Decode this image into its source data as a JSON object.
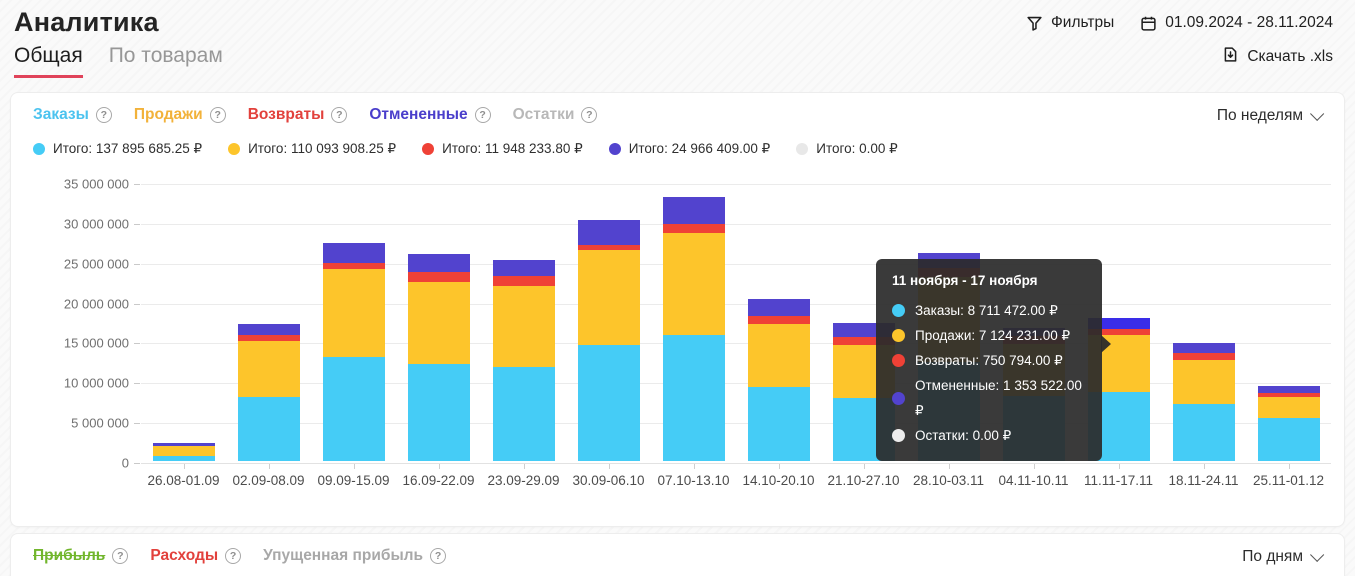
{
  "header": {
    "title": "Аналитика",
    "tabs": [
      {
        "label": "Общая",
        "active": true
      },
      {
        "label": "По товарам",
        "active": false
      }
    ],
    "filters_label": "Фильтры",
    "date_range": "01.09.2024 - 28.11.2024",
    "download_label": "Скачать .xls"
  },
  "main_panel": {
    "period_select": "По неделям",
    "series_toggles": [
      {
        "label": "Заказы",
        "color": "#4cc3ef",
        "strikethrough": false
      },
      {
        "label": "Продажи",
        "color": "#f2b23a",
        "strikethrough": false
      },
      {
        "label": "Возвраты",
        "color": "#e2413c",
        "strikethrough": false
      },
      {
        "label": "Отмененные",
        "color": "#4a3ecb",
        "strikethrough": false
      },
      {
        "label": "Остатки",
        "color": "#b8b8b8",
        "strikethrough": false
      }
    ],
    "totals": [
      {
        "label": "Итого: 137 895 685.25 ₽",
        "color": "#45ccf6"
      },
      {
        "label": "Итого: 110 093 908.25 ₽",
        "color": "#fdc52b"
      },
      {
        "label": "Итого: 11 948 233.80 ₽",
        "color": "#ef4136"
      },
      {
        "label": "Итого: 24 966 409.00 ₽",
        "color": "#5243ce"
      },
      {
        "label": "Итого: 0.00 ₽",
        "color": "#e8e8e8"
      }
    ]
  },
  "chart_data": {
    "type": "bar",
    "stacked": true,
    "title": "",
    "xlabel": "",
    "ylabel": "",
    "ylim": [
      0,
      35000000
    ],
    "ytick_step": 5000000,
    "ytick_labels": [
      "0",
      "5 000 000",
      "10 000 000",
      "15 000 000",
      "20 000 000",
      "25 000 000",
      "30 000 000",
      "35 000 000"
    ],
    "grid": true,
    "legend_position": "top",
    "highlight_bar_index": 11,
    "highlight_series": "Отмененные",
    "highlight_color": "#3a2de8",
    "categories": [
      "26.08-01.09",
      "02.09-08.09",
      "09.09-15.09",
      "16.09-22.09",
      "23.09-29.09",
      "30.09-06.10",
      "07.10-13.10",
      "14.10-20.10",
      "21.10-27.10",
      "28.10-03.11",
      "04.11-10.11",
      "11.11-17.11",
      "18.11-24.11",
      "25.11-01.12"
    ],
    "series": [
      {
        "name": "Заказы",
        "color": "#45ccf6",
        "values": [
          590000,
          8000000,
          13100000,
          12200000,
          11800000,
          14550000,
          15800000,
          9300000,
          7900000,
          12450000,
          8190000,
          8711472,
          7150000,
          5350000
        ]
      },
      {
        "name": "Продажи",
        "color": "#fdc52b",
        "values": [
          1250000,
          7000000,
          11000000,
          10250000,
          10200000,
          11900000,
          12800000,
          7860000,
          6690000,
          10580000,
          6480000,
          7124231,
          5560000,
          2720000
        ]
      },
      {
        "name": "Возвраты",
        "color": "#ef4136",
        "values": [
          80000,
          840000,
          710000,
          1250000,
          1200000,
          670000,
          1180000,
          1040000,
          920000,
          1130000,
          1040000,
          750794,
          830000,
          460000
        ]
      },
      {
        "name": "Отмененные",
        "color": "#5243ce",
        "values": [
          350000,
          1300000,
          2500000,
          2300000,
          2000000,
          3100000,
          3300000,
          2100000,
          1800000,
          1920000,
          1040000,
          1353522,
          1250000,
          840000
        ]
      },
      {
        "name": "Остатки",
        "color": "#e8e8e8",
        "values": [
          0,
          0,
          0,
          0,
          0,
          0,
          0,
          0,
          0,
          0,
          0,
          0,
          0,
          0
        ]
      }
    ]
  },
  "tooltip": {
    "title": "11 ноября - 17 ноября",
    "rows": [
      {
        "label": "Заказы: 8 711 472.00 ₽",
        "color": "#45ccf6"
      },
      {
        "label": "Продажи: 7 124 231.00 ₽",
        "color": "#fdc52b"
      },
      {
        "label": "Возвраты: 750 794.00 ₽",
        "color": "#ef4136"
      },
      {
        "label": "Отмененные: 1 353 522.00 ₽",
        "color": "#5243ce"
      },
      {
        "label": "Остатки: 0.00 ₽",
        "color": "#ededed"
      }
    ]
  },
  "bottom_panel": {
    "period_select": "По дням",
    "series_toggles": [
      {
        "label": "Прибыль",
        "color": "#72b62d",
        "strikethrough": true
      },
      {
        "label": "Расходы",
        "color": "#e2413c",
        "strikethrough": false
      },
      {
        "label": "Упущенная прибыль",
        "color": "#a8a8a8",
        "strikethrough": false
      }
    ]
  }
}
